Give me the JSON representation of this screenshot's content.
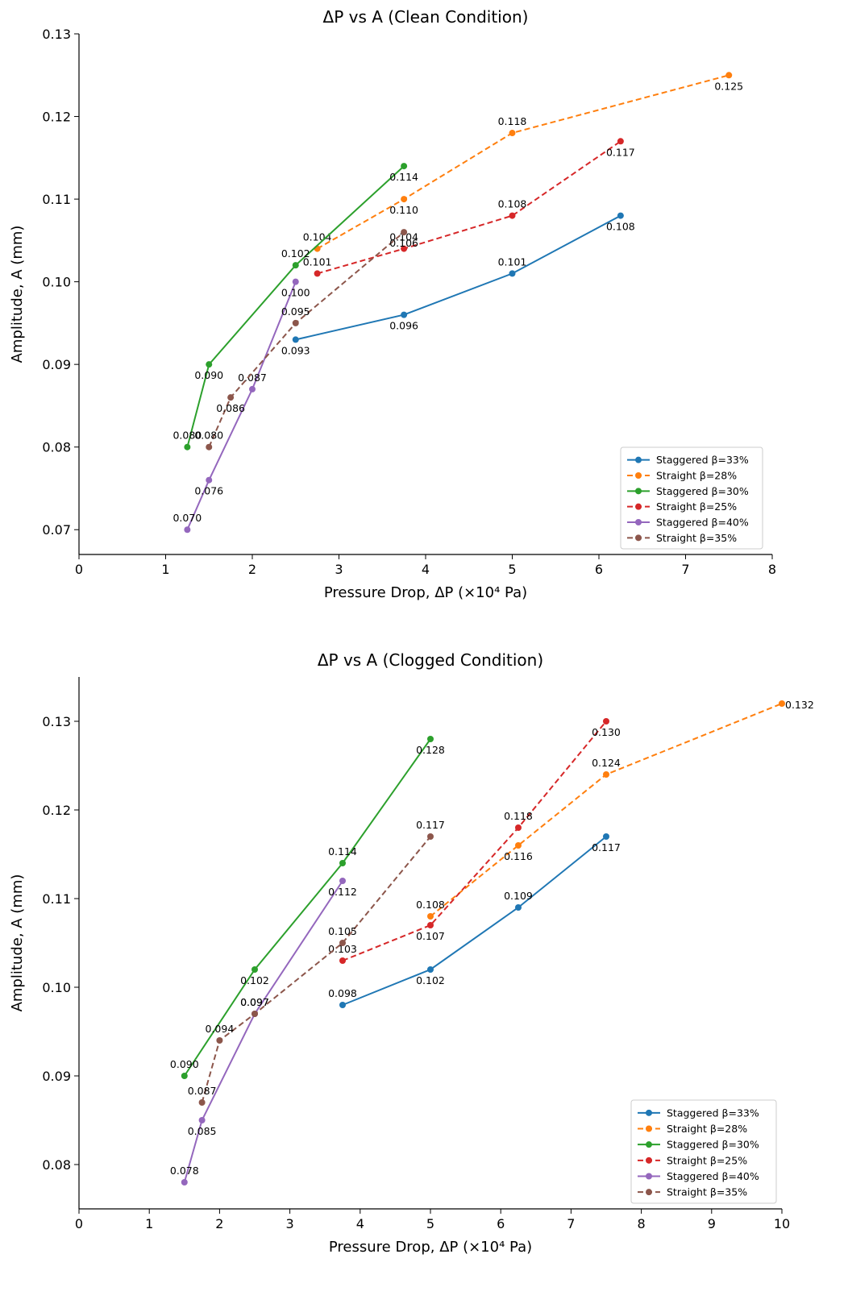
{
  "chart_data": [
    {
      "type": "line",
      "title": "ΔP vs A (Clean Condition)",
      "xlabel": "Pressure Drop, ΔP (×10⁴ Pa)",
      "ylabel": "Amplitude, A (mm)",
      "xlim": [
        0,
        8
      ],
      "ylim": [
        0.067,
        0.13
      ],
      "xticks": [
        0,
        1,
        2,
        3,
        4,
        5,
        6,
        7,
        8
      ],
      "yticks": [
        0.07,
        0.08,
        0.09,
        0.1,
        0.11,
        0.12,
        0.13
      ],
      "xtick_labels": [
        "0",
        "1",
        "2",
        "3",
        "4",
        "5",
        "6",
        "7",
        "8"
      ],
      "ytick_labels": [
        "0.07",
        "0.08",
        "0.09",
        "0.10",
        "0.11",
        "0.12",
        "0.13"
      ],
      "grid": false,
      "legend_position": "bottom-right",
      "series": [
        {
          "name": "Staggered β=33%",
          "color": "#1f77b4",
          "dashed": false,
          "x": [
            2.5,
            3.75,
            5.0,
            6.25
          ],
          "y": [
            0.093,
            0.096,
            0.101,
            0.108
          ],
          "labels": [
            "0.093",
            "0.096",
            "0.101",
            "0.108"
          ]
        },
        {
          "name": "Straight β=28%",
          "color": "#ff7f0e",
          "dashed": true,
          "x": [
            2.75,
            3.75,
            5.0,
            7.5
          ],
          "y": [
            0.104,
            0.11,
            0.118,
            0.125
          ],
          "labels": [
            "0.104",
            "0.110",
            "0.118",
            "0.125"
          ]
        },
        {
          "name": "Staggered β=30%",
          "color": "#2ca02c",
          "dashed": false,
          "x": [
            1.25,
            1.5,
            2.5,
            3.75
          ],
          "y": [
            0.08,
            0.09,
            0.102,
            0.114
          ],
          "labels": [
            "0.080",
            "0.090",
            "0.102",
            "0.114"
          ]
        },
        {
          "name": "Straight β=25%",
          "color": "#d62728",
          "dashed": true,
          "x": [
            2.75,
            3.75,
            5.0,
            6.25
          ],
          "y": [
            0.101,
            0.104,
            0.108,
            0.117
          ],
          "labels": [
            "0.101",
            "0.104",
            "0.108",
            "0.117"
          ]
        },
        {
          "name": "Staggered β=40%",
          "color": "#9467bd",
          "dashed": false,
          "x": [
            1.25,
            1.5,
            2.0,
            2.5
          ],
          "y": [
            0.07,
            0.076,
            0.087,
            0.1
          ],
          "labels": [
            "0.070",
            "0.076",
            "0.087",
            "0.100"
          ]
        },
        {
          "name": "Straight β=35%",
          "color": "#8c564b",
          "dashed": true,
          "x": [
            1.5,
            1.75,
            2.5,
            3.75
          ],
          "y": [
            0.08,
            0.086,
            0.095,
            0.106
          ],
          "labels": [
            "0.080",
            "0.086",
            "0.095",
            "0.106"
          ]
        }
      ]
    },
    {
      "type": "line",
      "title": "ΔP vs A (Clogged Condition)",
      "xlabel": "Pressure Drop, ΔP (×10⁴ Pa)",
      "ylabel": "Amplitude, A (mm)",
      "xlim": [
        0,
        10
      ],
      "ylim": [
        0.075,
        0.135
      ],
      "xticks": [
        0,
        1,
        2,
        3,
        4,
        5,
        6,
        7,
        8,
        9,
        10
      ],
      "yticks": [
        0.08,
        0.09,
        0.1,
        0.11,
        0.12,
        0.13
      ],
      "xtick_labels": [
        "0",
        "1",
        "2",
        "3",
        "4",
        "5",
        "6",
        "7",
        "8",
        "9",
        "10"
      ],
      "ytick_labels": [
        "0.08",
        "0.09",
        "0.10",
        "0.11",
        "0.12",
        "0.13"
      ],
      "grid": false,
      "legend_position": "bottom-right",
      "series": [
        {
          "name": "Staggered β=33%",
          "color": "#1f77b4",
          "dashed": false,
          "x": [
            3.75,
            5.0,
            6.25,
            7.5
          ],
          "y": [
            0.098,
            0.102,
            0.109,
            0.117
          ],
          "labels": [
            "0.098",
            "0.102",
            "0.109",
            "0.117"
          ]
        },
        {
          "name": "Straight β=28%",
          "color": "#ff7f0e",
          "dashed": true,
          "x": [
            5.0,
            6.25,
            7.5,
            10.0
          ],
          "y": [
            0.108,
            0.116,
            0.124,
            0.132
          ],
          "labels": [
            "0.108",
            "0.116",
            "0.124",
            "0.132"
          ]
        },
        {
          "name": "Staggered β=30%",
          "color": "#2ca02c",
          "dashed": false,
          "x": [
            1.5,
            2.5,
            3.75,
            5.0
          ],
          "y": [
            0.09,
            0.102,
            0.114,
            0.128
          ],
          "labels": [
            "0.090",
            "0.102",
            "0.114",
            "0.128"
          ]
        },
        {
          "name": "Straight β=25%",
          "color": "#d62728",
          "dashed": true,
          "x": [
            3.75,
            5.0,
            6.25,
            7.5
          ],
          "y": [
            0.103,
            0.107,
            0.118,
            0.13
          ],
          "labels": [
            "0.103",
            "0.107",
            "0.118",
            "0.130"
          ]
        },
        {
          "name": "Staggered β=40%",
          "color": "#9467bd",
          "dashed": false,
          "x": [
            1.5,
            1.75,
            2.5,
            3.75
          ],
          "y": [
            0.078,
            0.085,
            0.097,
            0.112
          ],
          "labels": [
            "0.078",
            "0.085",
            "0.097",
            "0.112"
          ]
        },
        {
          "name": "Straight β=35%",
          "color": "#8c564b",
          "dashed": true,
          "x": [
            1.75,
            2.0,
            2.5,
            3.75,
            5.0
          ],
          "y": [
            0.087,
            0.094,
            0.097,
            0.105,
            0.117
          ],
          "labels": [
            "0.087",
            "0.094",
            "0.097",
            "0.105",
            "0.117"
          ]
        }
      ]
    }
  ]
}
